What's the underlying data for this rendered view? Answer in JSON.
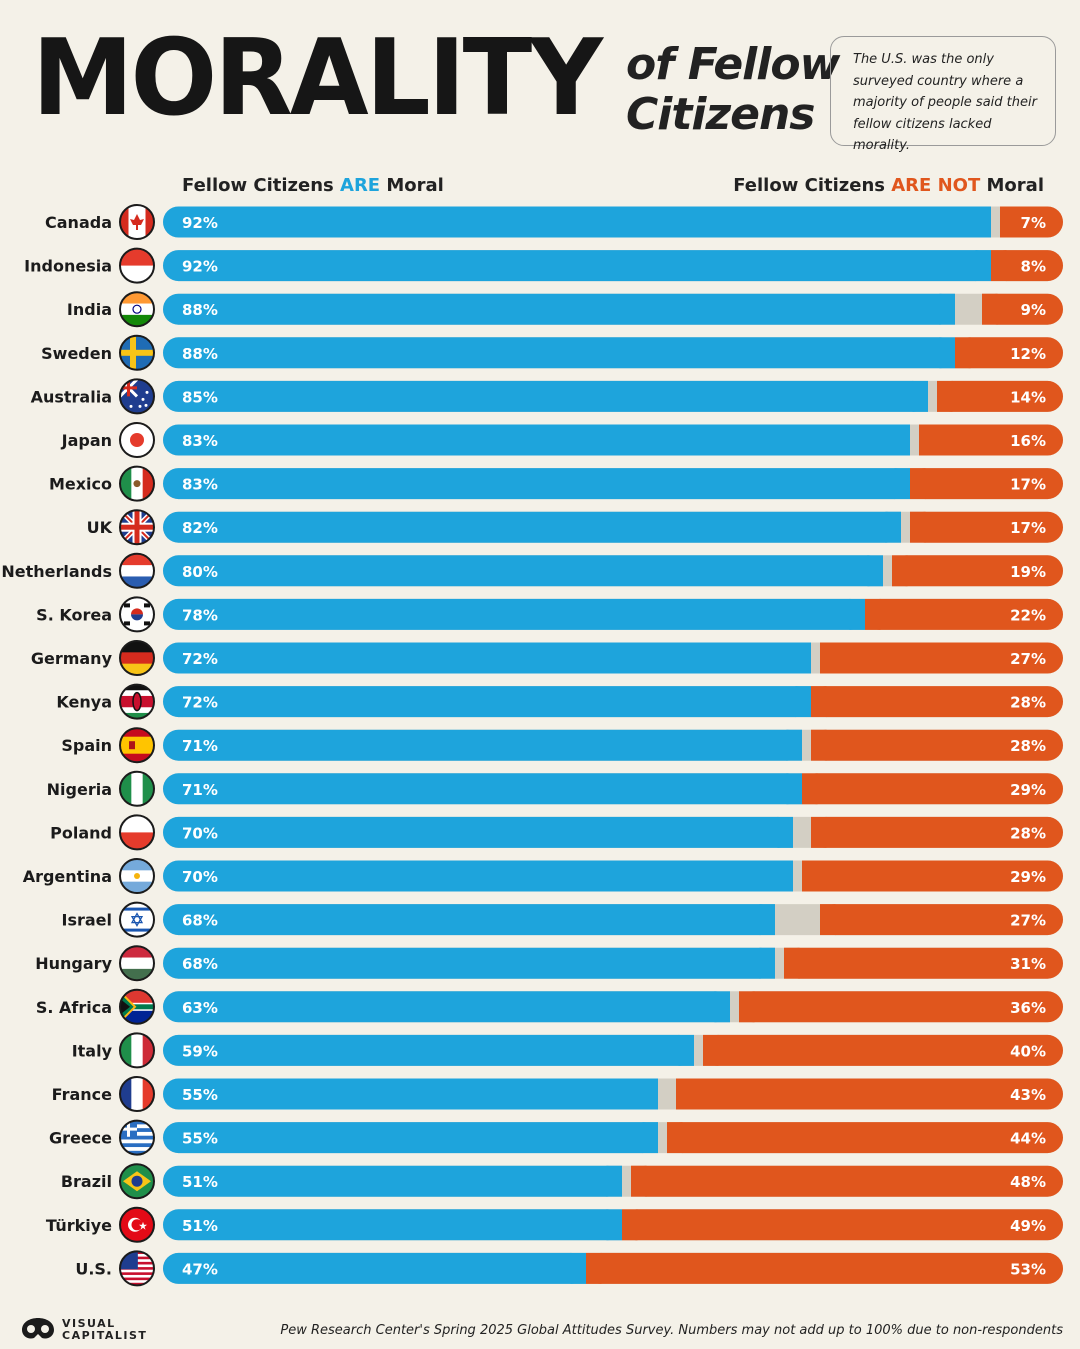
{
  "title": {
    "main": "MORALITY",
    "sub_line1": "of Fellow",
    "sub_line2": "Citizens"
  },
  "note": "The U.S. was the only surveyed country where a majority of people said their fellow citizens lacked morality.",
  "legend": {
    "left_prefix": "Fellow Citizens ",
    "left_highlight": "ARE",
    "left_suffix": " Moral",
    "right_prefix": "Fellow Citizens ",
    "right_highlight": "ARE NOT",
    "right_suffix": " Moral"
  },
  "colors": {
    "moral": "#1ea4dc",
    "not_moral": "#e0561d",
    "no_answer": "#d3cfc4",
    "background": "#f4f1e8"
  },
  "chart_data": {
    "type": "bar",
    "orientation": "horizontal",
    "stacked": true,
    "categories": [
      "Canada",
      "Indonesia",
      "India",
      "Sweden",
      "Australia",
      "Japan",
      "Mexico",
      "UK",
      "Netherlands",
      "S. Korea",
      "Germany",
      "Kenya",
      "Spain",
      "Nigeria",
      "Poland",
      "Argentina",
      "Israel",
      "Hungary",
      "S. Africa",
      "Italy",
      "France",
      "Greece",
      "Brazil",
      "Türkiye",
      "U.S."
    ],
    "series": [
      {
        "name": "Fellow Citizens ARE Moral",
        "values": [
          92,
          92,
          88,
          88,
          85,
          83,
          83,
          82,
          80,
          78,
          72,
          72,
          71,
          71,
          70,
          70,
          68,
          68,
          63,
          59,
          55,
          55,
          51,
          51,
          47
        ]
      },
      {
        "name": "Fellow Citizens ARE NOT Moral",
        "values": [
          7,
          8,
          9,
          12,
          14,
          16,
          17,
          17,
          19,
          22,
          27,
          28,
          28,
          29,
          28,
          29,
          27,
          31,
          36,
          40,
          43,
          44,
          48,
          49,
          53
        ]
      }
    ],
    "value_suffix": "%",
    "xlim": [
      0,
      100
    ],
    "flags": [
      "canada-flag-icon",
      "indonesia-flag-icon",
      "india-flag-icon",
      "sweden-flag-icon",
      "australia-flag-icon",
      "japan-flag-icon",
      "mexico-flag-icon",
      "uk-flag-icon",
      "netherlands-flag-icon",
      "south-korea-flag-icon",
      "germany-flag-icon",
      "kenya-flag-icon",
      "spain-flag-icon",
      "nigeria-flag-icon",
      "poland-flag-icon",
      "argentina-flag-icon",
      "israel-flag-icon",
      "hungary-flag-icon",
      "south-africa-flag-icon",
      "italy-flag-icon",
      "france-flag-icon",
      "greece-flag-icon",
      "brazil-flag-icon",
      "turkiye-flag-icon",
      "us-flag-icon"
    ]
  },
  "footer": {
    "source": "Pew Research Center's Spring 2025 Global Attitudes Survey. Numbers may not add up to 100% due to non-respondents",
    "brand_line1": "VISUAL",
    "brand_line2": "CAPITALIST"
  }
}
